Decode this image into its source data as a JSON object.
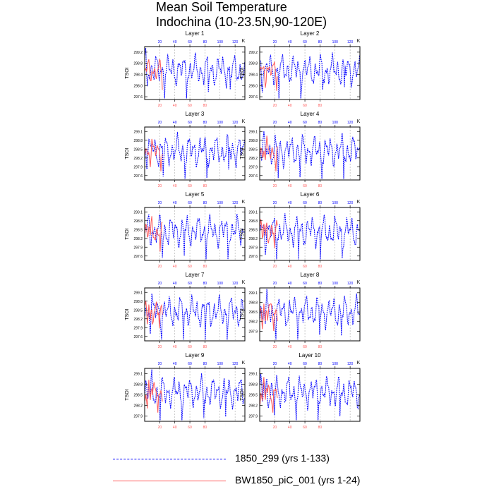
{
  "title_line1": "Mean Soil Temperature",
  "title_line2": "Indochina (10-23.5N,90-120E)",
  "colors": {
    "model_a": "#0000ff",
    "model_b": "#ff5a5a",
    "axis": "#000000"
  },
  "legend": [
    {
      "label": "1850_299 (yrs 1-133)",
      "color": "#0000ff",
      "style": "dashed"
    },
    {
      "label": "BW1850_piC_001 (yrs 1-24)",
      "color": "#ff5a5a",
      "style": "solid"
    }
  ],
  "chart_data": [
    {
      "type": "line",
      "title": "Layer 1",
      "ylabel": "TSOI",
      "top_axis_label": "K",
      "ylim": [
        297.5,
        299.4
      ],
      "yticks": [
        297.6,
        298.0,
        298.4,
        298.8,
        299.2
      ],
      "top_xticks": [
        20,
        40,
        60,
        80,
        100,
        120
      ],
      "bottom_xticks": [
        20,
        40,
        60,
        80
      ],
      "top_xlim": [
        0,
        133
      ],
      "bottom_xlim": [
        0,
        133
      ]
    },
    {
      "type": "line",
      "title": "Layer 2",
      "ylabel": "TSOI",
      "top_axis_label": "K",
      "ylim": [
        297.5,
        299.4
      ],
      "yticks": [
        297.6,
        298.0,
        298.4,
        298.8,
        299.2
      ],
      "top_xticks": [
        20,
        40,
        60,
        80,
        100,
        120
      ],
      "bottom_xticks": [
        20,
        40,
        60,
        80
      ],
      "top_xlim": [
        0,
        133
      ],
      "bottom_xlim": [
        0,
        133
      ]
    },
    {
      "type": "line",
      "title": "Layer 3",
      "ylabel": "TSOI",
      "top_axis_label": "K",
      "ylim": [
        297.45,
        299.25
      ],
      "yticks": [
        297.6,
        297.9,
        298.2,
        298.5,
        298.8,
        299.1
      ],
      "top_xticks": [
        20,
        40,
        60,
        80,
        100,
        120
      ],
      "bottom_xticks": [
        20,
        40,
        60,
        80
      ],
      "top_xlim": [
        0,
        133
      ],
      "bottom_xlim": [
        0,
        133
      ]
    },
    {
      "type": "line",
      "title": "Layer 4",
      "ylabel": "TSOI",
      "top_axis_label": "K",
      "ylim": [
        297.45,
        299.25
      ],
      "yticks": [
        297.6,
        297.9,
        298.2,
        298.5,
        298.8,
        299.1
      ],
      "top_xticks": [
        20,
        40,
        60,
        80,
        100,
        120
      ],
      "bottom_xticks": [
        20,
        40,
        60,
        80
      ],
      "top_xlim": [
        0,
        133
      ],
      "bottom_xlim": [
        0,
        133
      ]
    },
    {
      "type": "line",
      "title": "Layer 5",
      "ylabel": "TSOI",
      "top_axis_label": "K",
      "ylim": [
        297.45,
        299.25
      ],
      "yticks": [
        297.6,
        297.9,
        298.2,
        298.5,
        298.8,
        299.1
      ],
      "top_xticks": [
        20,
        40,
        60,
        80,
        100,
        120
      ],
      "bottom_xticks": [
        20,
        40,
        60,
        80
      ],
      "top_xlim": [
        0,
        133
      ],
      "bottom_xlim": [
        0,
        133
      ]
    },
    {
      "type": "line",
      "title": "Layer 6",
      "ylabel": "TSOI",
      "top_axis_label": "K",
      "ylim": [
        297.45,
        299.25
      ],
      "yticks": [
        297.6,
        297.9,
        298.2,
        298.5,
        298.8,
        299.1
      ],
      "top_xticks": [
        20,
        40,
        60,
        80,
        100,
        120
      ],
      "bottom_xticks": [
        20,
        40,
        60,
        80
      ],
      "top_xlim": [
        0,
        133
      ],
      "bottom_xlim": [
        0,
        133
      ]
    },
    {
      "type": "line",
      "title": "Layer 7",
      "ylabel": "TSOI",
      "top_axis_label": "K",
      "ylim": [
        297.45,
        299.25
      ],
      "yticks": [
        297.6,
        297.9,
        298.2,
        298.5,
        298.8,
        299.1
      ],
      "top_xticks": [
        20,
        40,
        60,
        80,
        100,
        120
      ],
      "bottom_xticks": [
        20,
        40,
        60,
        80
      ],
      "top_xlim": [
        0,
        133
      ],
      "bottom_xlim": [
        0,
        133
      ]
    },
    {
      "type": "line",
      "title": "Layer 8",
      "ylabel": "TSOI",
      "top_axis_label": "K",
      "ylim": [
        297.6,
        299.25
      ],
      "yticks": [
        297.9,
        298.2,
        298.5,
        298.8,
        299.1
      ],
      "top_xticks": [
        20,
        40,
        60,
        80,
        100,
        120
      ],
      "bottom_xticks": [
        20,
        40,
        60,
        80
      ],
      "top_xlim": [
        0,
        133
      ],
      "bottom_xlim": [
        0,
        133
      ]
    },
    {
      "type": "line",
      "title": "Layer 9",
      "ylabel": "TSOI",
      "top_axis_label": "K",
      "ylim": [
        297.75,
        299.25
      ],
      "yticks": [
        297.9,
        298.2,
        298.5,
        298.8,
        299.1
      ],
      "top_xticks": [
        20,
        40,
        60,
        80,
        100,
        120
      ],
      "bottom_xticks": [
        20,
        40,
        60,
        80
      ],
      "top_xlim": [
        0,
        133
      ],
      "bottom_xlim": [
        0,
        133
      ]
    },
    {
      "type": "line",
      "title": "Layer 10",
      "ylabel": "TSOI",
      "top_axis_label": "K",
      "ylim": [
        297.75,
        299.25
      ],
      "yticks": [
        297.9,
        298.2,
        298.5,
        298.8,
        299.1
      ],
      "top_xticks": [
        20,
        40,
        60,
        80,
        100,
        120
      ],
      "bottom_xticks": [
        20,
        40,
        60,
        80
      ],
      "top_xlim": [
        0,
        133
      ],
      "bottom_xlim": [
        0,
        133
      ]
    }
  ]
}
